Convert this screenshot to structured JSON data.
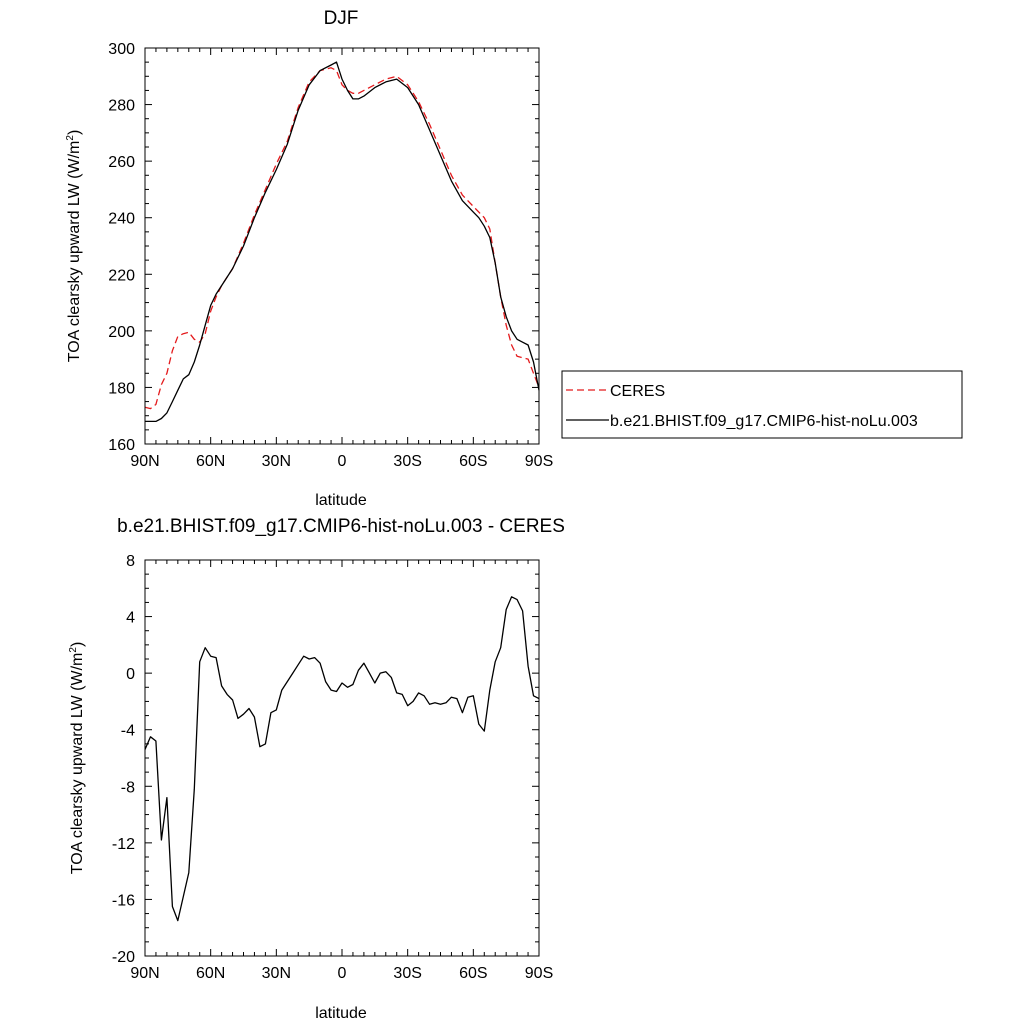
{
  "chart_data": [
    {
      "type": "line",
      "title": "DJF",
      "xlabel": "latitude",
      "ylabel": "TOA clearsky upward LW (W/m",
      "ylabel_sup": "2",
      "ylabel_close": ")",
      "xlim": [
        90,
        -90
      ],
      "ylim": [
        160,
        300
      ],
      "xticks": [
        90,
        60,
        30,
        0,
        -30,
        -60,
        -90
      ],
      "xtick_labels": [
        "90N",
        "60N",
        "30N",
        "0",
        "30S",
        "60S",
        "90S"
      ],
      "yticks": [
        160,
        180,
        200,
        220,
        240,
        260,
        280,
        300
      ],
      "ytick_labels": [
        "160",
        "180",
        "200",
        "220",
        "240",
        "260",
        "280",
        "300"
      ],
      "legend": "right-outside",
      "series": [
        {
          "name": "CERES",
          "color": "#e41a1c",
          "dash": "dashed",
          "points": [
            [
              90,
              173
            ],
            [
              87.5,
              172.5
            ],
            [
              85,
              174
            ],
            [
              82.5,
              181
            ],
            [
              80,
              185
            ],
            [
              77.5,
              193
            ],
            [
              75,
              198
            ],
            [
              72.5,
              199
            ],
            [
              70,
              199.5
            ],
            [
              67.5,
              197
            ],
            [
              65,
              196
            ],
            [
              62.5,
              199
            ],
            [
              60,
              207
            ],
            [
              57.5,
              212
            ],
            [
              55,
              216
            ],
            [
              50,
              222
            ],
            [
              45,
              231
            ],
            [
              40,
              241
            ],
            [
              35,
              250
            ],
            [
              30,
              259
            ],
            [
              25,
              267
            ],
            [
              20,
              279
            ],
            [
              15,
              288
            ],
            [
              10,
              292
            ],
            [
              5,
              293
            ],
            [
              2.5,
              292
            ],
            [
              0,
              287
            ],
            [
              -2.5,
              285
            ],
            [
              -5,
              284
            ],
            [
              -7.5,
              284
            ],
            [
              -10,
              285
            ],
            [
              -15,
              287
            ],
            [
              -20,
              289
            ],
            [
              -25,
              290
            ],
            [
              -30,
              287
            ],
            [
              -35,
              281
            ],
            [
              -40,
              273
            ],
            [
              -45,
              264
            ],
            [
              -50,
              255
            ],
            [
              -55,
              248
            ],
            [
              -60,
              244
            ],
            [
              -62.5,
              242
            ],
            [
              -65,
              240
            ],
            [
              -67.5,
              236
            ],
            [
              -70,
              224
            ],
            [
              -72.5,
              212
            ],
            [
              -75,
              202
            ],
            [
              -77.5,
              195
            ],
            [
              -80,
              191
            ],
            [
              -85,
              190
            ],
            [
              -87.5,
              185
            ],
            [
              -90,
              180
            ]
          ]
        },
        {
          "name": "b.e21.BHIST.f09_g17.CMIP6-hist-noLu.003",
          "color": "#000000",
          "dash": "solid",
          "points": [
            [
              90,
              168
            ],
            [
              87.5,
              168
            ],
            [
              85,
              168
            ],
            [
              82.5,
              169
            ],
            [
              80,
              171
            ],
            [
              77.5,
              175
            ],
            [
              75,
              179
            ],
            [
              72.5,
              183
            ],
            [
              70,
              184.5
            ],
            [
              67.5,
              189
            ],
            [
              65,
              195
            ],
            [
              62.5,
              202
            ],
            [
              60,
              209
            ],
            [
              57.5,
              213
            ],
            [
              55,
              216
            ],
            [
              50,
              222
            ],
            [
              45,
              230
            ],
            [
              40,
              240
            ],
            [
              35,
              249
            ],
            [
              30,
              257
            ],
            [
              25,
              266
            ],
            [
              20,
              278
            ],
            [
              15,
              287
            ],
            [
              10,
              292
            ],
            [
              5,
              294
            ],
            [
              2.5,
              295
            ],
            [
              0,
              289
            ],
            [
              -2.5,
              285
            ],
            [
              -5,
              282
            ],
            [
              -7.5,
              282
            ],
            [
              -10,
              283
            ],
            [
              -15,
              286
            ],
            [
              -20,
              288
            ],
            [
              -25,
              289
            ],
            [
              -30,
              286
            ],
            [
              -35,
              280
            ],
            [
              -40,
              271
            ],
            [
              -45,
              262
            ],
            [
              -50,
              253
            ],
            [
              -55,
              246
            ],
            [
              -60,
              242
            ],
            [
              -62.5,
              240
            ],
            [
              -65,
              237
            ],
            [
              -67.5,
              233
            ],
            [
              -70,
              224
            ],
            [
              -72.5,
              212
            ],
            [
              -75,
              205
            ],
            [
              -77.5,
              200
            ],
            [
              -80,
              197
            ],
            [
              -82.5,
              196
            ],
            [
              -85,
              195
            ],
            [
              -87.5,
              189
            ],
            [
              -90,
              179
            ]
          ]
        }
      ]
    },
    {
      "type": "line",
      "title": "b.e21.BHIST.f09_g17.CMIP6-hist-noLu.003 - CERES",
      "xlabel": "latitude",
      "ylabel": "TOA clearsky upward LW (W/m",
      "ylabel_sup": "2",
      "ylabel_close": ")",
      "xlim": [
        90,
        -90
      ],
      "ylim": [
        -20,
        8
      ],
      "xticks": [
        90,
        60,
        30,
        0,
        -30,
        -60,
        -90
      ],
      "xtick_labels": [
        "90N",
        "60N",
        "30N",
        "0",
        "30S",
        "60S",
        "90S"
      ],
      "yticks": [
        -20,
        -16,
        -12,
        -8,
        -4,
        0,
        4,
        8
      ],
      "ytick_labels": [
        "-20",
        "-16",
        "-12",
        "-8",
        "-4",
        "0",
        "4",
        "8"
      ],
      "series": [
        {
          "color": "#000000",
          "dash": "solid",
          "points": [
            [
              90,
              -5.4
            ],
            [
              87.5,
              -4.5
            ],
            [
              85,
              -4.8
            ],
            [
              82.5,
              -11.8
            ],
            [
              80,
              -8.8
            ],
            [
              77.5,
              -16.5
            ],
            [
              75,
              -17.5
            ],
            [
              72.5,
              -15.8
            ],
            [
              70,
              -14.1
            ],
            [
              67.5,
              -8.2
            ],
            [
              65,
              0.8
            ],
            [
              62.5,
              1.8
            ],
            [
              60,
              1.2
            ],
            [
              57.5,
              1.1
            ],
            [
              55,
              -0.9
            ],
            [
              52.5,
              -1.5
            ],
            [
              50,
              -1.9
            ],
            [
              47.5,
              -3.2
            ],
            [
              45,
              -2.9
            ],
            [
              42.5,
              -2.5
            ],
            [
              40,
              -3.1
            ],
            [
              37.5,
              -5.2
            ],
            [
              35,
              -5.0
            ],
            [
              32.5,
              -2.8
            ],
            [
              30,
              -2.6
            ],
            [
              27.5,
              -1.2
            ],
            [
              25,
              -0.6
            ],
            [
              22.5,
              0
            ],
            [
              20,
              0.6
            ],
            [
              17.5,
              1.2
            ],
            [
              15,
              1.0
            ],
            [
              12.5,
              1.1
            ],
            [
              10,
              0.7
            ],
            [
              7.5,
              -0.6
            ],
            [
              5,
              -1.2
            ],
            [
              2.5,
              -1.3
            ],
            [
              0,
              -0.7
            ],
            [
              -2.5,
              -1.0
            ],
            [
              -5,
              -0.8
            ],
            [
              -7.5,
              0.2
            ],
            [
              -10,
              0.7
            ],
            [
              -12.5,
              0
            ],
            [
              -15,
              -0.7
            ],
            [
              -17.5,
              0
            ],
            [
              -20,
              0.1
            ],
            [
              -22.5,
              -0.3
            ],
            [
              -25,
              -1.4
            ],
            [
              -27.5,
              -1.5
            ],
            [
              -30,
              -2.3
            ],
            [
              -32.5,
              -2.0
            ],
            [
              -35,
              -1.4
            ],
            [
              -37.5,
              -1.6
            ],
            [
              -40,
              -2.2
            ],
            [
              -42.5,
              -2.1
            ],
            [
              -45,
              -2.2
            ],
            [
              -47.5,
              -2.1
            ],
            [
              -50,
              -1.7
            ],
            [
              -52.5,
              -1.8
            ],
            [
              -55,
              -2.8
            ],
            [
              -57.5,
              -1.7
            ],
            [
              -60,
              -1.6
            ],
            [
              -62.5,
              -3.6
            ],
            [
              -65,
              -4.1
            ],
            [
              -67.5,
              -1.2
            ],
            [
              -70,
              0.8
            ],
            [
              -72.5,
              1.8
            ],
            [
              -75,
              4.5
            ],
            [
              -77.5,
              5.4
            ],
            [
              -80,
              5.2
            ],
            [
              -82.5,
              4.4
            ],
            [
              -85,
              0.5
            ],
            [
              -87.5,
              -1.6
            ],
            [
              -90,
              -1.8
            ]
          ]
        }
      ]
    }
  ]
}
